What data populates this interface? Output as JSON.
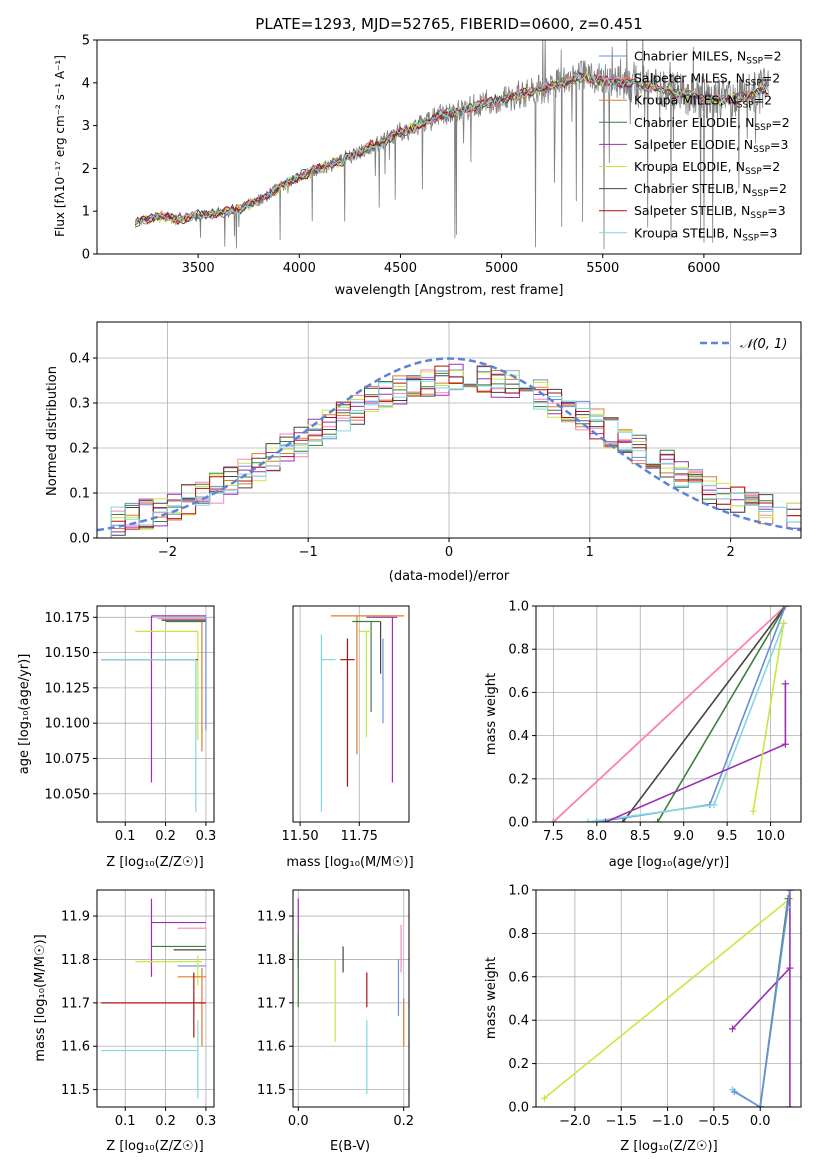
{
  "figure": {
    "title": "PLATE=1293, MJD=52765, FIBERID=0600, z=0.451"
  },
  "legend": {
    "entries": [
      {
        "label": "Chabrier MILES, N",
        "sub": "SSP",
        "suffix": "=2",
        "color": "#6a8fd8"
      },
      {
        "label": "Salpeter MILES, N",
        "sub": "SSP",
        "suffix": "=2",
        "color": "#ff7fbf"
      },
      {
        "label": "Kroupa MILES, N",
        "sub": "SSP",
        "suffix": "=2",
        "color": "#e07b2a"
      },
      {
        "label": "Chabrier ELODIE, N",
        "sub": "SSP",
        "suffix": "=2",
        "color": "#3c7f3c"
      },
      {
        "label": "Salpeter ELODIE, N",
        "sub": "SSP",
        "suffix": "=3",
        "color": "#9b30b0"
      },
      {
        "label": "Kroupa ELODIE, N",
        "sub": "SSP",
        "suffix": "=2",
        "color": "#c8e840"
      },
      {
        "label": "Chabrier STELIB, N",
        "sub": "SSP",
        "suffix": "=2",
        "color": "#444444"
      },
      {
        "label": "Salpeter STELIB, N",
        "sub": "SSP",
        "suffix": "=3",
        "color": "#b01010"
      },
      {
        "label": "Kroupa STELIB, N",
        "sub": "SSP",
        "suffix": "=3",
        "color": "#80d8e0"
      }
    ],
    "normal_label": "𝒩(0, 1)"
  },
  "chart_data": [
    {
      "id": "spectrum",
      "type": "line",
      "title": "PLATE=1293, MJD=52765, FIBERID=0600, z=0.451",
      "xlabel": "wavelength [Angstrom, rest frame]",
      "ylabel": "Flux [fλ10⁻¹⁷ erg cm⁻² s⁻¹ A⁻¹]",
      "xlim": [
        3000,
        6480
      ],
      "ylim": [
        0,
        5
      ],
      "xticks": [
        3500,
        4000,
        4500,
        5000,
        5500,
        6000
      ],
      "yticks": [
        0,
        1,
        2,
        3,
        4,
        5
      ],
      "grid": false,
      "legend_position": "top-right",
      "continuum": {
        "x": [
          3190,
          3250,
          3300,
          3400,
          3500,
          3600,
          3700,
          3800,
          3900,
          4000,
          4100,
          4200,
          4300,
          4400,
          4500,
          4600,
          4700,
          4800,
          4900,
          5000,
          5100,
          5200,
          5300,
          5400,
          5500,
          5600,
          5700,
          5800,
          5900,
          6000,
          6100,
          6200,
          6300
        ],
        "y": [
          0.75,
          0.82,
          0.88,
          0.82,
          0.9,
          0.95,
          1.05,
          1.25,
          1.55,
          1.8,
          2.0,
          2.15,
          2.4,
          2.6,
          2.85,
          3.0,
          3.25,
          3.35,
          3.5,
          3.6,
          3.75,
          3.85,
          4.0,
          4.15,
          4.05,
          4.0,
          3.95,
          3.85,
          3.75,
          3.65,
          3.6,
          3.65,
          3.85
        ]
      }
    },
    {
      "id": "residuals",
      "type": "line",
      "xlabel": "(data-model)/error",
      "ylabel": "Normed distribution",
      "xlim": [
        -2.5,
        2.5
      ],
      "ylim": [
        0,
        0.48
      ],
      "xticks": [
        -2,
        -1,
        0,
        1,
        2
      ],
      "yticks": [
        0.0,
        0.1,
        0.2,
        0.3,
        0.4
      ],
      "grid": true,
      "legend_position": "top-right",
      "series": [
        {
          "name": "𝒩(0, 1)",
          "mean": 0,
          "sigma": 1
        }
      ]
    },
    {
      "id": "age-vs-Z",
      "type": "scatter",
      "xlabel": "Z [log₁₀(Z/Z☉)]",
      "ylabel": "age  [log₁₀(age/yr)]",
      "xlim": [
        0.03,
        0.32
      ],
      "ylim": [
        10.03,
        10.183
      ],
      "xticks": [
        0.1,
        0.2,
        0.3
      ],
      "yticks": [
        10.05,
        10.075,
        10.1,
        10.125,
        10.15,
        10.175
      ],
      "grid": true
    },
    {
      "id": "age-vs-mass",
      "type": "scatter",
      "xlabel": "mass [log₁₀(M/M☉)]",
      "xlim": [
        11.47,
        11.96
      ],
      "ylim": [
        10.03,
        10.183
      ],
      "xticks": [
        11.5,
        11.75
      ],
      "grid": true
    },
    {
      "id": "massweight-vs-age",
      "type": "line",
      "xlabel": "age  [log₁₀(age/yr)]",
      "ylabel": "mass weight",
      "xlim": [
        7.3,
        10.35
      ],
      "ylim": [
        0,
        1
      ],
      "xticks": [
        7.5,
        8.0,
        8.5,
        9.0,
        9.5,
        10.0
      ],
      "yticks": [
        0.0,
        0.2,
        0.4,
        0.6,
        0.8,
        1.0
      ],
      "grid": true
    },
    {
      "id": "mass-vs-Z",
      "type": "scatter",
      "xlabel": "Z [log₁₀(Z/Z☉)]",
      "ylabel": "mass [log₁₀(M/M☉)]",
      "xlim": [
        0.03,
        0.32
      ],
      "ylim": [
        11.46,
        11.96
      ],
      "xticks": [
        0.1,
        0.2,
        0.3
      ],
      "yticks": [
        11.5,
        11.6,
        11.7,
        11.8,
        11.9
      ],
      "grid": true
    },
    {
      "id": "mass-vs-EBV",
      "type": "scatter",
      "xlabel": "E(B-V)",
      "xlim": [
        -0.01,
        0.21
      ],
      "ylim": [
        11.46,
        11.96
      ],
      "xticks": [
        0.0,
        0.2
      ],
      "yticks": [
        11.5,
        11.6,
        11.7,
        11.8,
        11.9
      ],
      "grid": true
    },
    {
      "id": "massweight-vs-Z",
      "type": "line",
      "xlabel": "Z [log₁₀(Z/Z☉)]",
      "ylabel": "mass weight",
      "xlim": [
        -2.42,
        0.44
      ],
      "ylim": [
        0,
        1
      ],
      "xticks": [
        -2.0,
        -1.5,
        -1.0,
        -0.5,
        0.0
      ],
      "yticks": [
        0.0,
        0.2,
        0.4,
        0.6,
        0.8,
        1.0
      ],
      "grid": true
    }
  ]
}
